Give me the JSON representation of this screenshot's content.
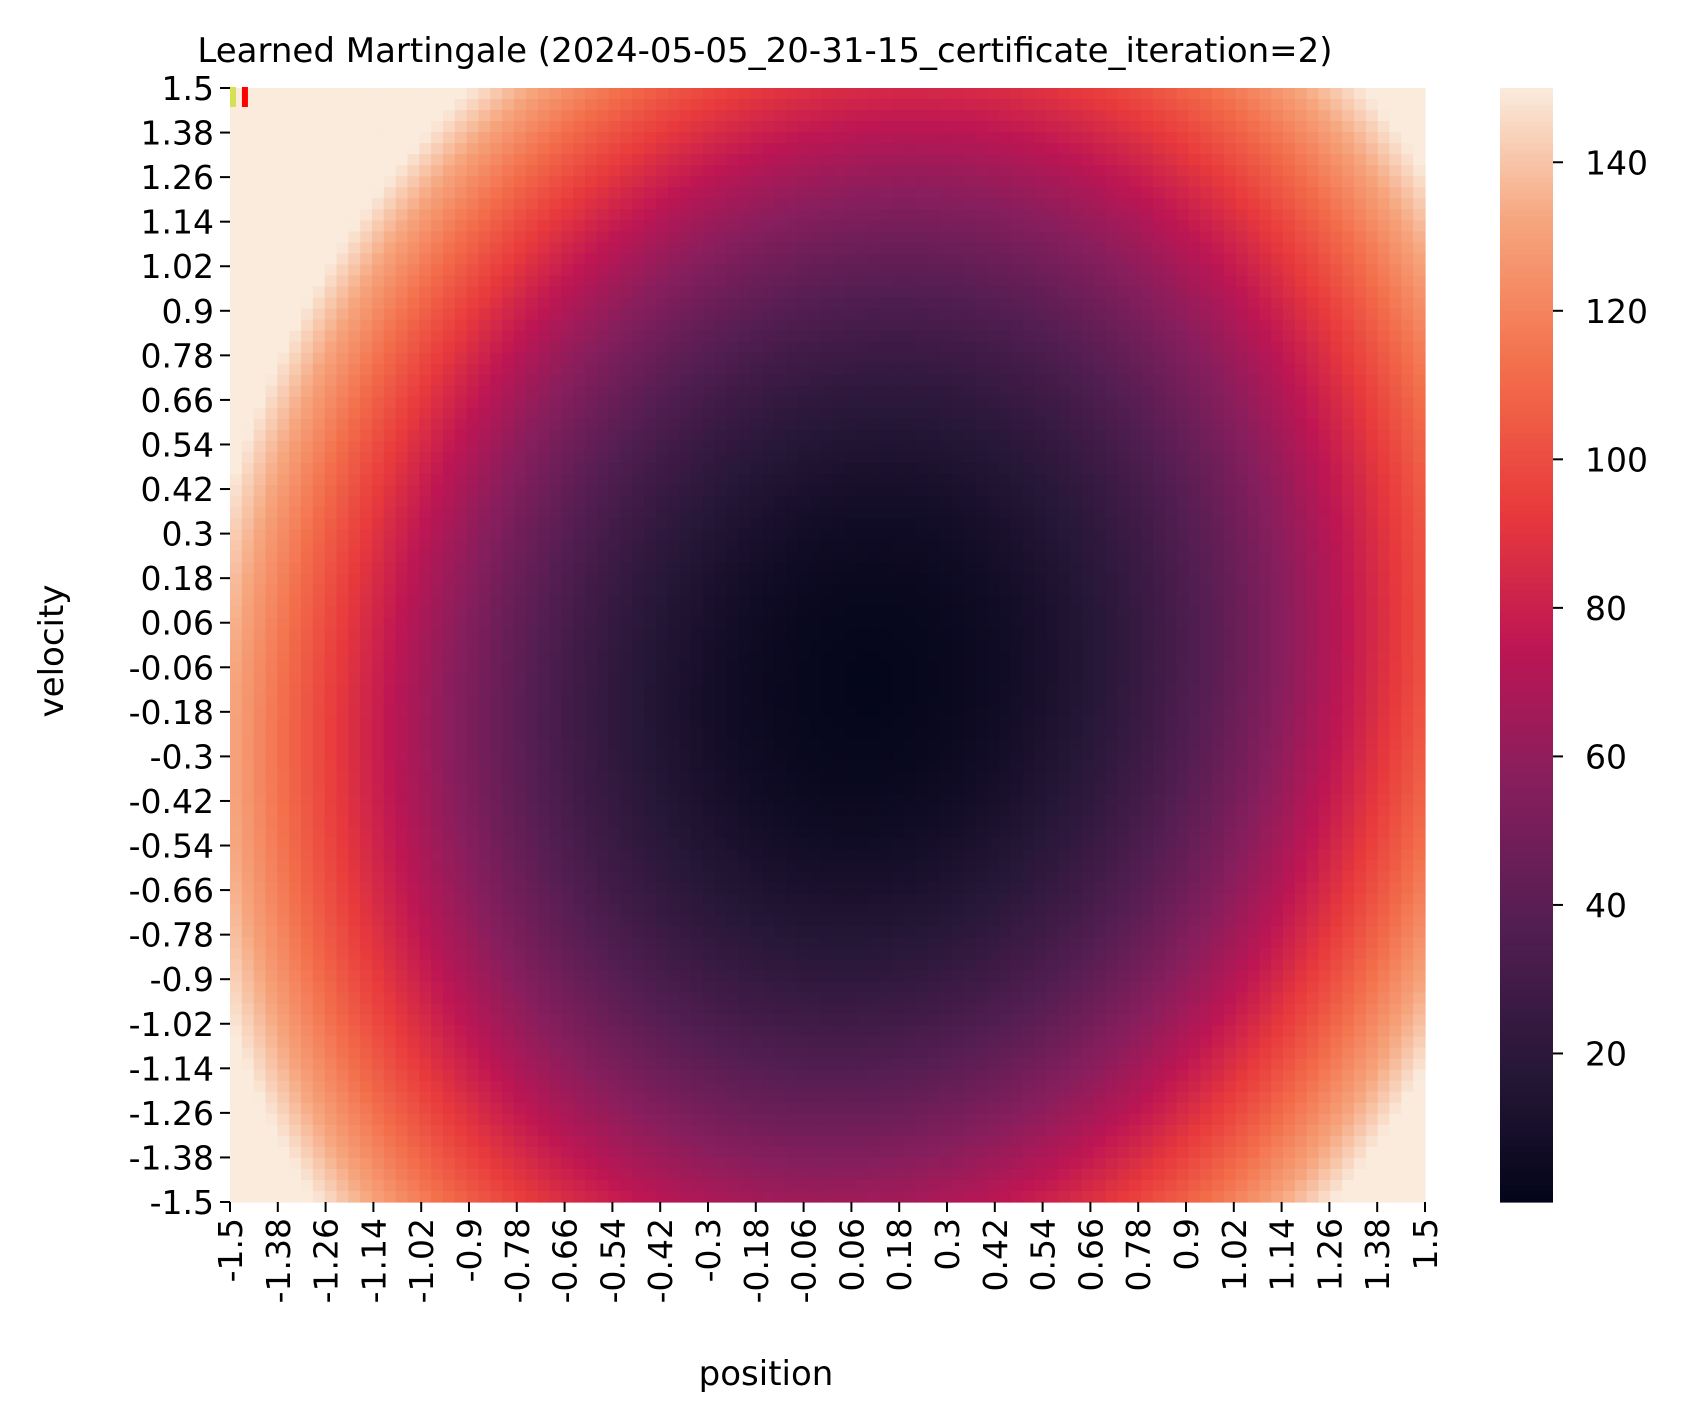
{
  "chart_data": {
    "type": "heatmap",
    "title": "Learned Martingale (2024-05-05_20-31-15_certificate_iteration=2)",
    "xlabel": "position",
    "ylabel": "velocity",
    "x_range": [
      -1.5,
      1.5
    ],
    "y_range": [
      -1.5,
      1.5
    ],
    "x_tick_labels": [
      "-1.5",
      "-1.38",
      "-1.26",
      "-1.14",
      "-1.02",
      "-0.9",
      "-0.78",
      "-0.66",
      "-0.54",
      "-0.42",
      "-0.3",
      "-0.18",
      "-0.06",
      "0.06",
      "0.18",
      "0.3",
      "0.42",
      "0.54",
      "0.66",
      "0.78",
      "0.9",
      "1.02",
      "1.14",
      "1.26",
      "1.38",
      "1.5"
    ],
    "y_tick_labels": [
      "1.5",
      "1.38",
      "1.26",
      "1.14",
      "1.02",
      "0.9",
      "0.78",
      "0.66",
      "0.54",
      "0.42",
      "0.3",
      "0.18",
      "0.06",
      "-0.06",
      "-0.18",
      "-0.3",
      "-0.42",
      "-0.54",
      "-0.66",
      "-0.78",
      "-0.9",
      "-1.02",
      "-1.14",
      "-1.26",
      "-1.38",
      "-1.5"
    ],
    "colorbar": {
      "ticks": [
        20,
        40,
        60,
        80,
        100,
        120,
        140
      ],
      "range": [
        0,
        150
      ],
      "colormap": "rocket"
    },
    "grid_resolution": 101,
    "value_model": {
      "description": "approx. quadratic bowl, minimum near (0.1, -0.1)",
      "center": [
        0.1,
        -0.1
      ],
      "min_value": 1,
      "pos_coeff": 52,
      "vel_coeff": 33,
      "cross_coeff": 8
    },
    "markers": [
      {
        "position": -1.5,
        "velocity": 1.5,
        "color": "#d4e157"
      },
      {
        "position": -1.47,
        "velocity": 1.5,
        "color": "#ff0000"
      }
    ]
  }
}
